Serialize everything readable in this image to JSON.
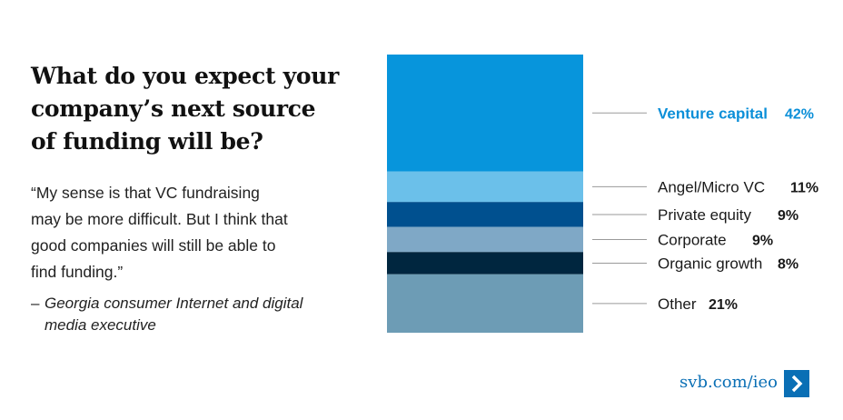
{
  "header": {
    "title_lines": [
      "What do you expect your",
      "company’s next source",
      "of funding will be?"
    ]
  },
  "quote": {
    "lines": [
      "“My sense is that VC fundraising",
      "may be more difficult. But I think that",
      "good companies will still be able to",
      "find funding.”"
    ],
    "attribution_dash": "–",
    "attribution_lines": [
      "Georgia consumer Internet and digital",
      "media executive"
    ]
  },
  "footer": {
    "link_text": "svb.com/ieo",
    "arrow_icon": "chevron-right-icon"
  },
  "chart_data": {
    "type": "bar",
    "stacked": true,
    "categories": [
      "Venture capital",
      "Angel/Micro VC",
      "Private equity",
      "Corporate",
      "Organic growth",
      "Other"
    ],
    "values": [
      42,
      11,
      9,
      9,
      8,
      21
    ],
    "value_labels": [
      "42%",
      "11%",
      "9%",
      "9%",
      "8%",
      "21%"
    ],
    "unit": "%",
    "colors": [
      "#0795dc",
      "#6bc0ea",
      "#00508f",
      "#7fa8c6",
      "#00263f",
      "#6d9cb5"
    ],
    "highlight_index": 0,
    "highlight_color": "#0b8fd8",
    "leader_color": "#9a9a9a",
    "title": "",
    "xlabel": "",
    "ylabel": ""
  }
}
